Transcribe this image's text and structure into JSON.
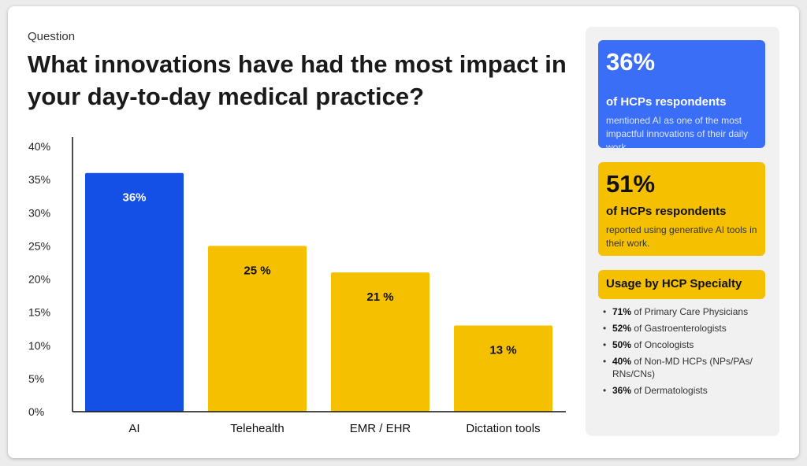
{
  "header": {
    "eyebrow": "Question",
    "question": "What innovations have had the most impact in your day-to-day medical practice?"
  },
  "chart_data": {
    "type": "bar",
    "categories": [
      "AI",
      "Telehealth",
      "EMR / EHR",
      "Dictation tools"
    ],
    "values": [
      36,
      25,
      21,
      13
    ],
    "bar_labels": [
      "36%",
      "25 %",
      "21 %",
      "13 %"
    ],
    "bar_colors": [
      "#1450e6",
      "#f5c000",
      "#f5c000",
      "#f5c000"
    ],
    "bar_label_colors": [
      "#ffffff",
      "#111111",
      "#111111",
      "#111111"
    ],
    "yticks": [
      0,
      5,
      10,
      15,
      20,
      25,
      30,
      35,
      40
    ],
    "ytick_labels": [
      "0%",
      "5%",
      "10%",
      "15%",
      "20%",
      "25%",
      "30%",
      "35%",
      "40%"
    ],
    "ylim": [
      0,
      40
    ],
    "grid": false
  },
  "side": {
    "stat1": {
      "value": "36%",
      "title": "of HCPs respondents",
      "desc": "mentioned AI as one of the most impactful innovations of their daily work"
    },
    "stat2": {
      "value": "51%",
      "title": "of HCPs respondents",
      "desc": "reported using generative AI tools in their work."
    },
    "usage_title": "Usage by HCP Specialty",
    "usage": [
      {
        "pct": "71%",
        "text": " of Primary Care Physicians"
      },
      {
        "pct": "52%",
        "text": " of Gastroenterologists"
      },
      {
        "pct": "50%",
        "text": " of Oncologists"
      },
      {
        "pct": "40%",
        "text": " of Non-MD HCPs (NPs/PAs/ RNs/CNs)"
      },
      {
        "pct": "36%",
        "text": " of Dermatologists"
      }
    ]
  },
  "colors": {
    "accent_blue": "#1450e6",
    "accent_yellow": "#f5c000",
    "card_blue": "#3b6ef7"
  }
}
